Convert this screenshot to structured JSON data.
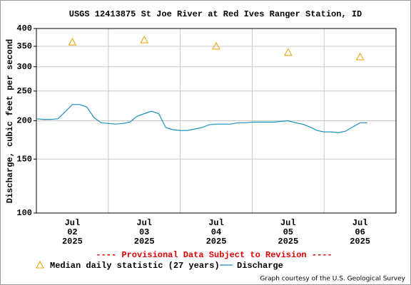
{
  "chart_data": {
    "type": "line",
    "title": "USGS 12413875 St Joe River at Red Ives Ranger Station, ID",
    "y_label": "Discharge, cubic feet per second",
    "log_y": true,
    "grid": true,
    "ylim": [
      100,
      400
    ],
    "yticks": [
      100,
      150,
      200,
      250,
      300,
      350,
      400
    ],
    "xticks": [
      {
        "month": "Jul",
        "day": "02",
        "year": "2025"
      },
      {
        "month": "Jul",
        "day": "03",
        "year": "2025"
      },
      {
        "month": "Jul",
        "day": "04",
        "year": "2025"
      },
      {
        "month": "Jul",
        "day": "05",
        "year": "2025"
      },
      {
        "month": "Jul",
        "day": "06",
        "year": "2025"
      }
    ],
    "series": [
      {
        "name": "Median daily statistic (27 years)",
        "color": "#e8a000",
        "marker": "triangle",
        "values": [
          361,
          367,
          350,
          334,
          323
        ]
      },
      {
        "name": "Discharge",
        "color": "#1f8fbf",
        "values": [
          203,
          202,
          202,
          203,
          214,
          226,
          226,
          222,
          205,
          197,
          196,
          195,
          196,
          198,
          207,
          211,
          215,
          211,
          190,
          187,
          186,
          186,
          188,
          190,
          194,
          195,
          195,
          195,
          197,
          197,
          198,
          198,
          198,
          198,
          199,
          200,
          197,
          195,
          191,
          186,
          184,
          184,
          183,
          185,
          191,
          197,
          197
        ]
      }
    ],
    "notice": "---- Provisional Data Subject to Revision ----",
    "credit": "Graph courtesy of the U.S. Geological Survey"
  }
}
